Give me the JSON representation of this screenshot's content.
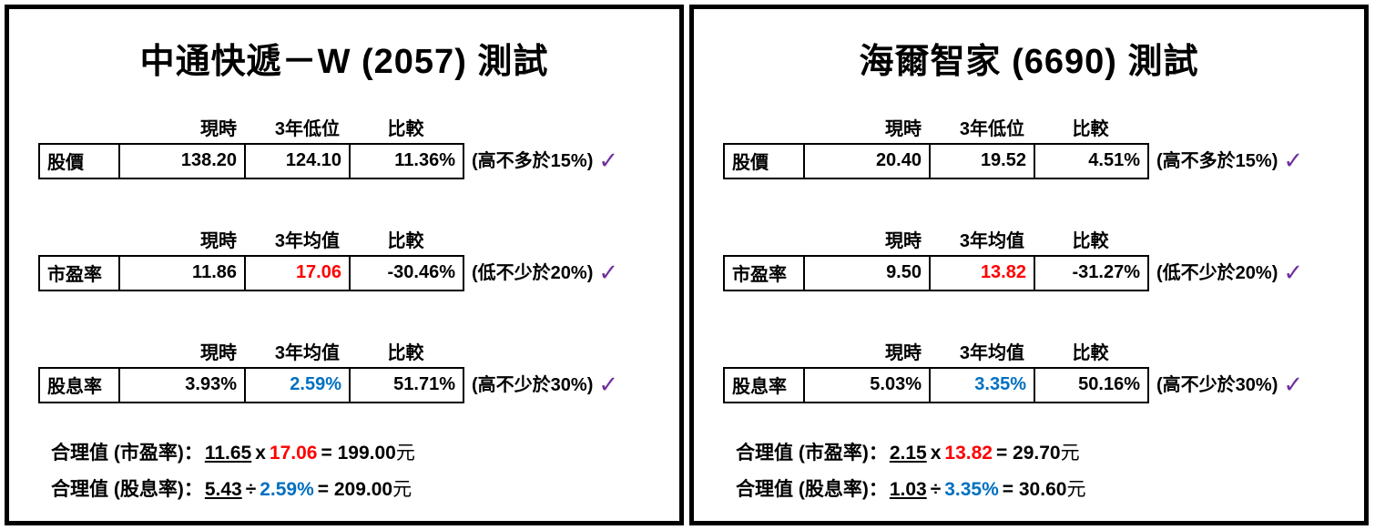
{
  "checkmark": "✓",
  "colors": {
    "value_red": "#FF0000",
    "value_blue": "#0070C0",
    "check_purple": "#7030A0",
    "border_black": "#000000"
  },
  "panels": [
    {
      "title": "中通快遞－W (2057) 測試",
      "sections": [
        {
          "headers": [
            "現時",
            "3年低位",
            "比較"
          ],
          "label": "股價",
          "values": [
            "138.20",
            "124.10",
            "11.36%"
          ],
          "value_colors": [
            "black",
            "black",
            "black"
          ],
          "note": "(高不多於15%)"
        },
        {
          "headers": [
            "現時",
            "3年均值",
            "比較"
          ],
          "label": "市盈率",
          "values": [
            "11.86",
            "17.06",
            "-30.46%"
          ],
          "value_colors": [
            "black",
            "red",
            "black"
          ],
          "note": "(低不少於20%)"
        },
        {
          "headers": [
            "現時",
            "3年均值",
            "比較"
          ],
          "label": "股息率",
          "values": [
            "3.93%",
            "2.59%",
            "51.71%"
          ],
          "value_colors": [
            "black",
            "blue",
            "black"
          ],
          "note": "(高不少於30%)"
        }
      ],
      "fair_values": [
        {
          "label": "合理值 (市盈率)：",
          "operand1": "11.65",
          "operator": "x",
          "operand2": "17.06",
          "operand2_color": "red",
          "result": "= 199.00",
          "unit": "元"
        },
        {
          "label": "合理值 (股息率)：",
          "operand1": "5.43",
          "operator": "÷",
          "operand2": "2.59%",
          "operand2_color": "blue",
          "result": "= 209.00",
          "unit": "元"
        }
      ]
    },
    {
      "title": "海爾智家 (6690) 測試",
      "sections": [
        {
          "headers": [
            "現時",
            "3年低位",
            "比較"
          ],
          "label": "股價",
          "values": [
            "20.40",
            "19.52",
            "4.51%"
          ],
          "value_colors": [
            "black",
            "black",
            "black"
          ],
          "note": "(高不多於15%)"
        },
        {
          "headers": [
            "現時",
            "3年均值",
            "比較"
          ],
          "label": "市盈率",
          "values": [
            "9.50",
            "13.82",
            "-31.27%"
          ],
          "value_colors": [
            "black",
            "red",
            "black"
          ],
          "note": "(低不少於20%)"
        },
        {
          "headers": [
            "現時",
            "3年均值",
            "比較"
          ],
          "label": "股息率",
          "values": [
            "5.03%",
            "3.35%",
            "50.16%"
          ],
          "value_colors": [
            "black",
            "blue",
            "black"
          ],
          "note": "(高不少於30%)"
        }
      ],
      "fair_values": [
        {
          "label": "合理值 (市盈率)：",
          "operand1": "2.15",
          "operator": "x",
          "operand2": "13.82",
          "operand2_color": "red",
          "result": "= 29.70",
          "unit": "元"
        },
        {
          "label": "合理值 (股息率)：",
          "operand1": "1.03",
          "operator": "÷",
          "operand2": "3.35%",
          "operand2_color": "blue",
          "result": "= 30.60",
          "unit": "元"
        }
      ]
    }
  ]
}
